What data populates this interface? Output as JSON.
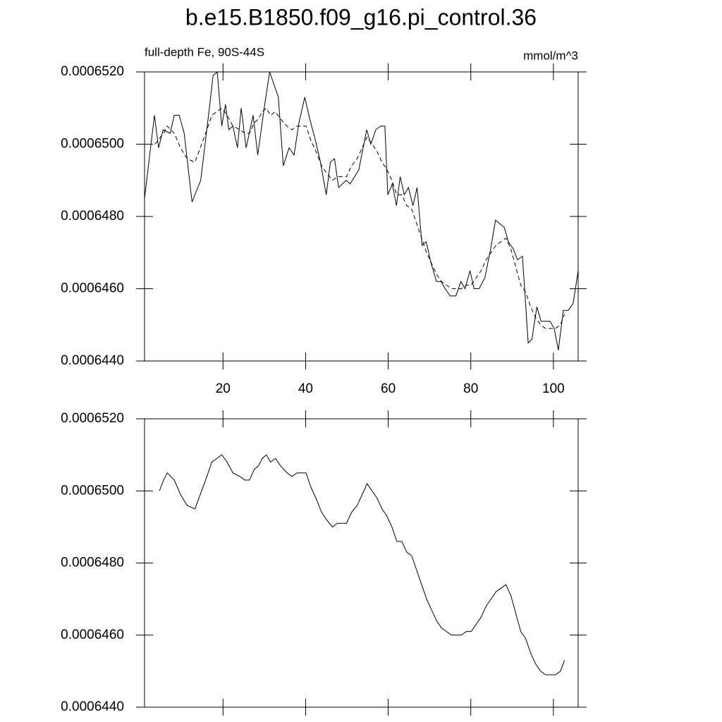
{
  "chart_data": [
    {
      "type": "line",
      "title": "b.e15.B1850.f09_g16.pi_control.36",
      "left_string": "full-depth Fe, 90S-44S",
      "right_string": "mmol/m^3",
      "xlim": [
        1,
        106
      ],
      "xticks": [
        20,
        40,
        60,
        80,
        100
      ],
      "xtick_labels": true,
      "ylim": [
        0.000644,
        0.000652
      ],
      "yticks": [
        {
          "value": 0.000644,
          "label": "0.0006440"
        },
        {
          "value": 0.000646,
          "label": "0.0006460"
        },
        {
          "value": 0.000648,
          "label": "0.0006480"
        },
        {
          "value": 0.00065,
          "label": "0.0006500"
        },
        {
          "value": 0.000652,
          "label": "0.0006520"
        }
      ],
      "series": [
        {
          "color": "#000000",
          "dash": false,
          "x": [
            1,
            3.4,
            4.4,
            5.5,
            7.2,
            8.2,
            9.4,
            10.6,
            12.5,
            14.6,
            16.6,
            17.6,
            18.6,
            19.7,
            20.6,
            21.4,
            22.4,
            23.5,
            24.4,
            25.6,
            27.3,
            28.4,
            30.1,
            31.3,
            33.4,
            34.6,
            36,
            37.2,
            38.4,
            39.8,
            41,
            42.4,
            43.6,
            45,
            46,
            47,
            48,
            49.8,
            50.8,
            52.9,
            54.8,
            55.8,
            57,
            58.2,
            59.2,
            59.9,
            61,
            62,
            62.9,
            63.9,
            64.9,
            66,
            67,
            68.2,
            69.2,
            70.4,
            71.7,
            72.8,
            73.8,
            75,
            76.4,
            77.6,
            78.6,
            79.8,
            80.8,
            82,
            83.4,
            84.8,
            86,
            87,
            88.1,
            89.1,
            90.3,
            91.3,
            92.5,
            93.9,
            94.8,
            96,
            97,
            98.2,
            99.2,
            100.2,
            101.2,
            102.4,
            103.6,
            104.8,
            106
          ],
          "values": [
            0.0006485,
            0.0006508,
            0.0006499,
            0.0006504,
            0.0006503,
            0.0006508,
            0.0006508,
            0.0006503,
            0.0006484,
            0.000649,
            0.0006509,
            0.0006519,
            0.000652,
            0.0006505,
            0.0006511,
            0.0006504,
            0.0006505,
            0.0006499,
            0.000651,
            0.0006499,
            0.0006508,
            0.0006497,
            0.0006511,
            0.000652,
            0.0006513,
            0.0006494,
            0.0006499,
            0.0006497,
            0.0006506,
            0.0006513,
            0.0006507,
            0.0006501,
            0.0006495,
            0.0006486,
            0.0006495,
            0.0006496,
            0.0006488,
            0.000649,
            0.0006489,
            0.0006493,
            0.0006504,
            0.00065,
            0.0006504,
            0.0006505,
            0.0006505,
            0.0006486,
            0.0006489,
            0.0006483,
            0.0006491,
            0.0006486,
            0.0006488,
            0.0006483,
            0.0006488,
            0.0006472,
            0.0006473,
            0.0006467,
            0.0006462,
            0.0006462,
            0.000646,
            0.0006458,
            0.0006458,
            0.0006462,
            0.000646,
            0.0006465,
            0.000646,
            0.000646,
            0.0006463,
            0.0006471,
            0.0006479,
            0.0006478,
            0.0006477,
            0.0006473,
            0.0006471,
            0.0006468,
            0.0006469,
            0.0006445,
            0.0006446,
            0.0006455,
            0.0006451,
            0.0006451,
            0.0006451,
            0.0006449,
            0.0006443,
            0.0006454,
            0.0006454,
            0.0006456,
            0.0006465
          ]
        },
        {
          "color": "#000000",
          "dash": true,
          "x": [
            3.5,
            5.6,
            6.5,
            8.2,
            9.7,
            11.3,
            13.2,
            14.5,
            16.1,
            17.3,
            18.5,
            19.7,
            21,
            22.4,
            24.1,
            25.3,
            26.4,
            27.6,
            28.6,
            29.5,
            30.5,
            31.5,
            32.7,
            33.9,
            35.5,
            36.7,
            37.9,
            38.9,
            40.1,
            41.3,
            42.5,
            43.9,
            45.1,
            46.5,
            47.7,
            48.9,
            49.9,
            51.1,
            52.5,
            53.7,
            54.9,
            56.1,
            57.3,
            58.5,
            59.7,
            60.9,
            62.1,
            63.3,
            64.5,
            65.7,
            66.9,
            68.1,
            69.3,
            70.5,
            71.7,
            72.9,
            74.1,
            75.3,
            76.5,
            77.7,
            78.9,
            80.1,
            81.3,
            82.5,
            83.7,
            84.9,
            86.1,
            87.3,
            88.5,
            89.7,
            90.9,
            92.1,
            93.3,
            94.5,
            95.7,
            96.9,
            98.1,
            99.3,
            100.5,
            101.7,
            102.7
          ],
          "values": [
            0.00065,
            0.0006503,
            0.0006505,
            0.0006503,
            0.0006499,
            0.0006496,
            0.0006495,
            0.0006499,
            0.0006504,
            0.0006508,
            0.0006509,
            0.000651,
            0.0006508,
            0.0006505,
            0.0006504,
            0.0006503,
            0.0006503,
            0.0006506,
            0.0006507,
            0.0006509,
            0.000651,
            0.0006508,
            0.0006509,
            0.0006507,
            0.0006505,
            0.0006504,
            0.0006505,
            0.0006505,
            0.0006505,
            0.0006501,
            0.0006498,
            0.0006494,
            0.0006492,
            0.000649,
            0.0006491,
            0.0006491,
            0.0006491,
            0.0006494,
            0.0006496,
            0.0006499,
            0.0006502,
            0.00065,
            0.0006498,
            0.0006495,
            0.0006493,
            0.000649,
            0.0006486,
            0.0006486,
            0.0006483,
            0.0006482,
            0.0006478,
            0.0006474,
            0.000647,
            0.0006467,
            0.0006464,
            0.0006462,
            0.0006461,
            0.000646,
            0.000646,
            0.000646,
            0.0006461,
            0.0006461,
            0.0006463,
            0.0006465,
            0.0006468,
            0.000647,
            0.0006472,
            0.0006473,
            0.0006474,
            0.0006471,
            0.0006466,
            0.0006461,
            0.0006459,
            0.0006455,
            0.0006452,
            0.000645,
            0.0006449,
            0.0006449,
            0.0006449,
            0.000645,
            0.0006453
          ]
        }
      ]
    },
    {
      "type": "line",
      "xlim": [
        1,
        106
      ],
      "xticks": [
        20,
        40,
        60,
        80,
        100
      ],
      "xtick_labels": false,
      "ylim": [
        0.000644,
        0.000652
      ],
      "yticks": [
        {
          "value": 0.000644,
          "label": "0.0006440"
        },
        {
          "value": 0.000646,
          "label": "0.0006460"
        },
        {
          "value": 0.000648,
          "label": "0.0006480"
        },
        {
          "value": 0.00065,
          "label": "0.0006500"
        },
        {
          "value": 0.000652,
          "label": "0.0006520"
        }
      ],
      "series": [
        {
          "color": "#000000",
          "dash": false,
          "x": [
            4.6,
            5.6,
            6.5,
            8.2,
            9.7,
            11.3,
            13.2,
            14.5,
            16.1,
            17.3,
            18.5,
            19.7,
            21,
            22.4,
            24.1,
            25.3,
            26.4,
            27.6,
            28.6,
            29.5,
            30.5,
            31.5,
            32.7,
            33.9,
            35.5,
            36.7,
            37.9,
            38.9,
            40.1,
            41.3,
            42.5,
            43.9,
            45.1,
            46.5,
            47.7,
            48.9,
            49.9,
            51.1,
            52.5,
            53.7,
            54.9,
            56.1,
            57.3,
            58.5,
            59.7,
            60.9,
            62.1,
            63.3,
            64.5,
            65.7,
            66.9,
            68.1,
            69.3,
            70.5,
            71.7,
            72.9,
            74.1,
            75.3,
            76.5,
            77.7,
            78.9,
            80.1,
            81.3,
            82.5,
            83.7,
            84.9,
            86.1,
            87.3,
            88.5,
            89.7,
            90.9,
            92.1,
            93.3,
            94.5,
            95.7,
            96.9,
            98.1,
            99.3,
            100.5,
            101.7,
            102.7
          ],
          "values": [
            0.00065,
            0.0006503,
            0.0006505,
            0.0006503,
            0.0006499,
            0.0006496,
            0.0006495,
            0.0006499,
            0.0006504,
            0.0006508,
            0.0006509,
            0.000651,
            0.0006508,
            0.0006505,
            0.0006504,
            0.0006503,
            0.0006503,
            0.0006506,
            0.0006507,
            0.0006509,
            0.000651,
            0.0006508,
            0.0006509,
            0.0006507,
            0.0006505,
            0.0006504,
            0.0006505,
            0.0006505,
            0.0006505,
            0.0006501,
            0.0006498,
            0.0006494,
            0.0006492,
            0.000649,
            0.0006491,
            0.0006491,
            0.0006491,
            0.0006494,
            0.0006496,
            0.0006499,
            0.0006502,
            0.00065,
            0.0006498,
            0.0006495,
            0.0006493,
            0.000649,
            0.0006486,
            0.0006486,
            0.0006483,
            0.0006482,
            0.0006478,
            0.0006474,
            0.000647,
            0.0006467,
            0.0006464,
            0.0006462,
            0.0006461,
            0.000646,
            0.000646,
            0.000646,
            0.0006461,
            0.0006461,
            0.0006463,
            0.0006465,
            0.0006468,
            0.000647,
            0.0006472,
            0.0006473,
            0.0006474,
            0.0006471,
            0.0006466,
            0.0006461,
            0.0006459,
            0.0006455,
            0.0006452,
            0.000645,
            0.0006449,
            0.0006449,
            0.0006449,
            0.000645,
            0.0006453
          ]
        }
      ]
    }
  ]
}
